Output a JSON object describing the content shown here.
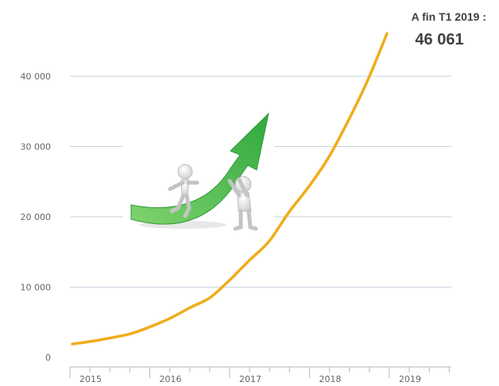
{
  "chart_data": {
    "type": "line",
    "title": "",
    "xlabel": "",
    "ylabel": "",
    "ylim": [
      0,
      47000
    ],
    "yticks": [
      0,
      10000,
      20000,
      30000,
      40000
    ],
    "ytick_labels": [
      "0",
      "10 000",
      "20 000",
      "30 000",
      "40 000"
    ],
    "x_categories": [
      "2015",
      "2016",
      "2017",
      "2018",
      "2019"
    ],
    "grid": true,
    "series": [
      {
        "color": "#F0AC1B",
        "x": [
          "T1 2015",
          "T2 2015",
          "T3 2015",
          "T4 2015",
          "T1 2016",
          "T2 2016",
          "T3 2016",
          "T4 2016",
          "T1 2017",
          "T2 2017",
          "T3 2017",
          "T4 2017",
          "T1 2018",
          "T2 2018",
          "T3 2018",
          "T4 2018",
          "T1 2019"
        ],
        "values": [
          1900,
          2300,
          2800,
          3400,
          4400,
          5600,
          7100,
          8500,
          11000,
          13800,
          16500,
          20600,
          24200,
          28300,
          33500,
          39300,
          46061
        ]
      }
    ],
    "annotation": {
      "title": "A fin T1 2019 :",
      "value": "46 061"
    },
    "illustration": {
      "arrow_color": "#3CB84A",
      "description_icon": "growth-arrow-figures-icon"
    }
  }
}
